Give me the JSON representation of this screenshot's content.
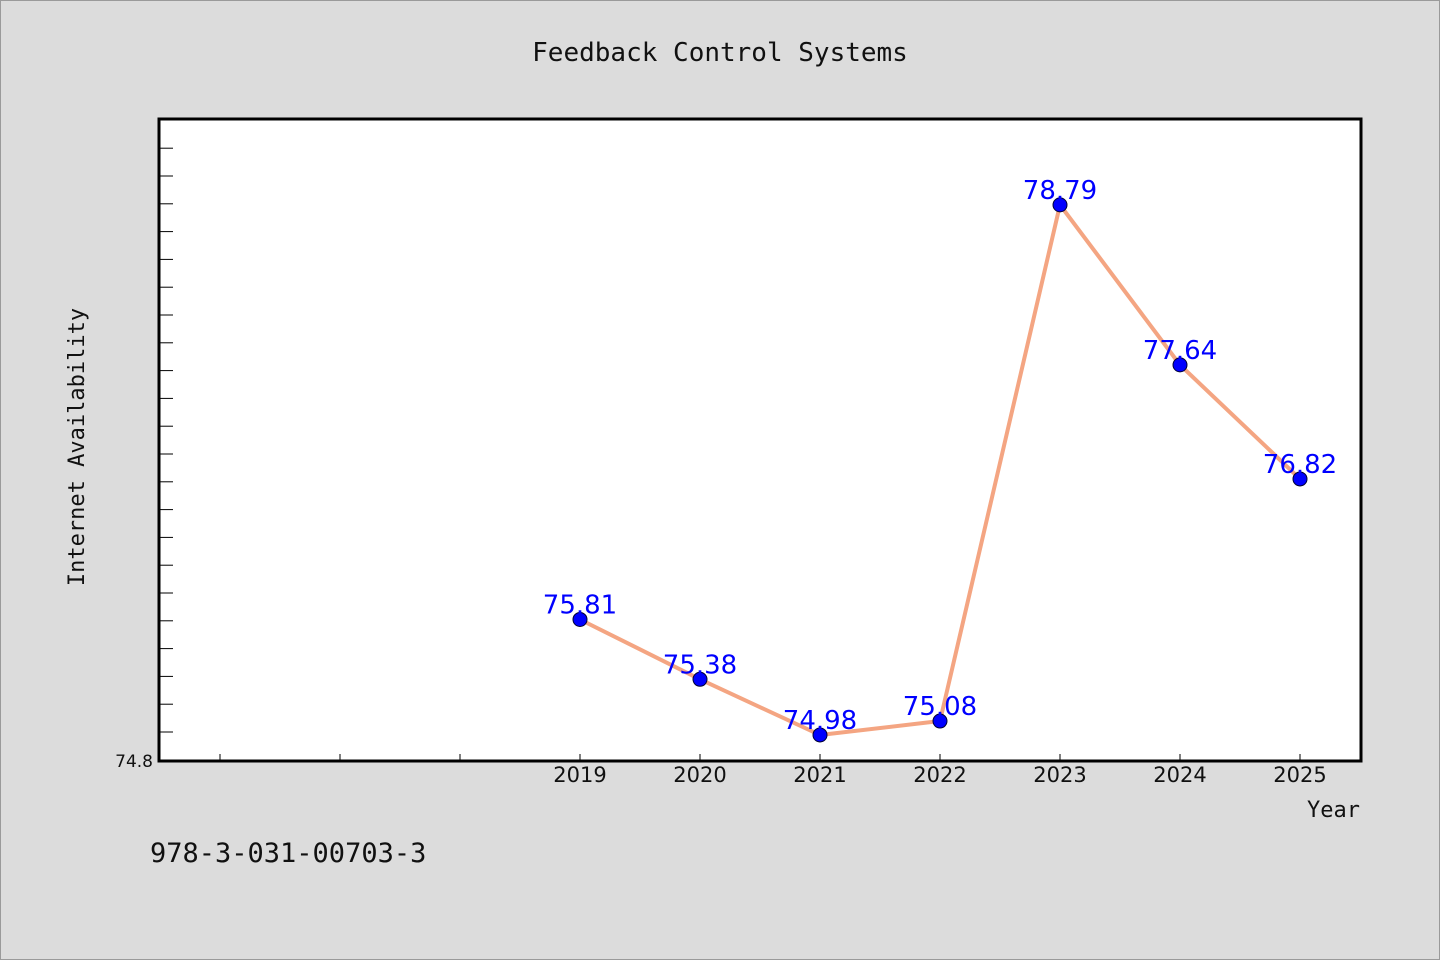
{
  "chart_data": {
    "type": "line",
    "title": "Feedback Control Systems",
    "xlabel": "Year",
    "ylabel": "Internet Availability",
    "categories": [
      "2019",
      "2020",
      "2021",
      "2022",
      "2023",
      "2024",
      "2025"
    ],
    "series": [
      {
        "values": [
          75.81,
          75.38,
          74.98,
          75.08,
          78.79,
          77.64,
          76.82
        ],
        "labels": [
          "75.81",
          "75.38",
          "74.98",
          "75.08",
          "78.79",
          "77.64",
          "76.82"
        ],
        "line_color": "#f4a582",
        "marker_color": "#0000ff"
      }
    ],
    "y_tick_labels": [
      "74.8"
    ],
    "ylim": [
      74.8,
      79.4
    ],
    "grid": false,
    "legend": "none"
  },
  "footer_text": "978-3-031-00703-3",
  "colors": {
    "background": "#dcdcdc",
    "plot_background": "#ffffff",
    "data_label": "#0000ff"
  }
}
